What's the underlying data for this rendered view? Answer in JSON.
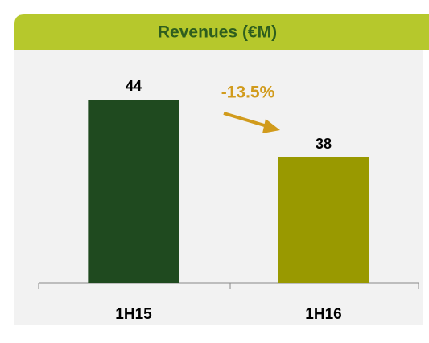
{
  "chart_data": {
    "type": "bar",
    "title": "Revenues (€M)",
    "categories": [
      "1H15",
      "1H16"
    ],
    "values": [
      44,
      38
    ],
    "colors": [
      "#1f4a1f",
      "#999900"
    ],
    "annotation": "-13.5%",
    "annotation_color": "#d19b1c",
    "ylim": [
      25,
      50
    ]
  }
}
